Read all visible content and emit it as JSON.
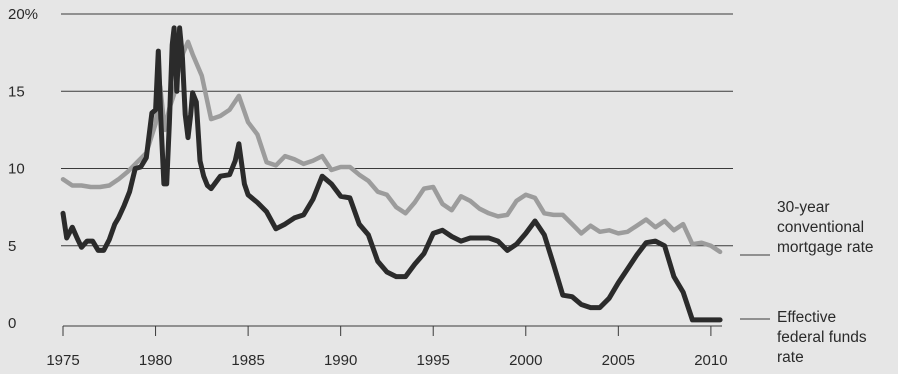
{
  "chart_data": {
    "type": "line",
    "title": "",
    "xlabel": "",
    "ylabel": "",
    "xlim": [
      1975,
      2010.6
    ],
    "ylim": [
      0,
      20
    ],
    "x_ticks": [
      "1975",
      "1980",
      "1985",
      "1990",
      "1995",
      "2000",
      "2005",
      "2010"
    ],
    "y_ticks": [
      "0",
      "5",
      "10",
      "15",
      "20%"
    ],
    "grid": "horizontal",
    "series": [
      {
        "name": "30-year conventional mortgage rate",
        "label_lines": [
          "30-year",
          "conventional",
          "mortgage rate"
        ],
        "color": "#9c9c9c",
        "x": [
          1975.0,
          1975.5,
          1976.0,
          1976.5,
          1977.0,
          1977.5,
          1978.0,
          1978.5,
          1979.0,
          1979.5,
          1980.0,
          1980.25,
          1980.5,
          1980.75,
          1981.0,
          1981.25,
          1981.5,
          1981.75,
          1982.0,
          1982.5,
          1983.0,
          1983.5,
          1984.0,
          1984.5,
          1985.0,
          1985.5,
          1986.0,
          1986.5,
          1987.0,
          1987.5,
          1988.0,
          1988.5,
          1989.0,
          1989.5,
          1990.0,
          1990.5,
          1991.0,
          1991.5,
          1992.0,
          1992.5,
          1993.0,
          1993.5,
          1994.0,
          1994.5,
          1995.0,
          1995.5,
          1996.0,
          1996.5,
          1997.0,
          1997.5,
          1998.0,
          1998.5,
          1999.0,
          1999.5,
          2000.0,
          2000.5,
          2001.0,
          2001.5,
          2002.0,
          2002.5,
          2003.0,
          2003.5,
          2004.0,
          2004.5,
          2005.0,
          2005.5,
          2006.0,
          2006.5,
          2007.0,
          2007.5,
          2008.0,
          2008.5,
          2009.0,
          2009.5,
          2010.0,
          2010.5
        ],
        "y": [
          9.3,
          8.9,
          8.9,
          8.8,
          8.8,
          8.9,
          9.3,
          9.8,
          10.4,
          11.0,
          12.9,
          15.3,
          12.5,
          13.9,
          14.8,
          16.5,
          17.5,
          18.2,
          17.4,
          16.0,
          13.2,
          13.4,
          13.8,
          14.7,
          13.0,
          12.2,
          10.4,
          10.2,
          10.8,
          10.6,
          10.3,
          10.5,
          10.8,
          9.9,
          10.1,
          10.1,
          9.6,
          9.2,
          8.5,
          8.3,
          7.5,
          7.1,
          7.8,
          8.7,
          8.8,
          7.7,
          7.3,
          8.2,
          7.9,
          7.4,
          7.1,
          6.9,
          7.0,
          7.9,
          8.3,
          8.1,
          7.1,
          7.0,
          7.0,
          6.4,
          5.8,
          6.3,
          5.9,
          6.0,
          5.8,
          5.9,
          6.3,
          6.7,
          6.2,
          6.6,
          6.0,
          6.4,
          5.1,
          5.2,
          5.0,
          4.6
        ]
      },
      {
        "name": "Effective federal funds rate",
        "label_lines": [
          "Effective",
          "federal funds",
          "rate"
        ],
        "color": "#2b2b2b",
        "x": [
          1975.0,
          1975.2,
          1975.5,
          1975.8,
          1976.0,
          1976.3,
          1976.6,
          1976.9,
          1977.2,
          1977.5,
          1977.8,
          1978.0,
          1978.3,
          1978.6,
          1978.9,
          1979.2,
          1979.5,
          1979.8,
          1980.0,
          1980.15,
          1980.3,
          1980.45,
          1980.6,
          1980.75,
          1980.9,
          1981.0,
          1981.15,
          1981.3,
          1981.45,
          1981.6,
          1981.75,
          1981.9,
          1982.0,
          1982.2,
          1982.4,
          1982.6,
          1982.8,
          1983.0,
          1983.5,
          1984.0,
          1984.3,
          1984.5,
          1984.8,
          1985.0,
          1985.5,
          1986.0,
          1986.5,
          1987.0,
          1987.5,
          1988.0,
          1988.5,
          1989.0,
          1989.5,
          1990.0,
          1990.5,
          1991.0,
          1991.5,
          1992.0,
          1992.5,
          1993.0,
          1993.5,
          1994.0,
          1994.5,
          1995.0,
          1995.5,
          1996.0,
          1996.5,
          1997.0,
          1997.5,
          1998.0,
          1998.5,
          1999.0,
          1999.5,
          2000.0,
          2000.5,
          2001.0,
          2001.5,
          2002.0,
          2002.5,
          2003.0,
          2003.5,
          2004.0,
          2004.5,
          2005.0,
          2005.5,
          2006.0,
          2006.5,
          2007.0,
          2007.5,
          2008.0,
          2008.5,
          2009.0,
          2009.5,
          2010.0,
          2010.5
        ],
        "y": [
          7.1,
          5.5,
          6.2,
          5.4,
          4.9,
          5.3,
          5.3,
          4.7,
          4.7,
          5.4,
          6.4,
          6.8,
          7.6,
          8.5,
          10.0,
          10.1,
          10.7,
          13.6,
          13.8,
          17.6,
          12.8,
          9.0,
          9.0,
          13.0,
          18.0,
          19.1,
          15.0,
          19.1,
          17.2,
          13.5,
          12.0,
          13.5,
          14.9,
          14.3,
          10.5,
          9.5,
          8.9,
          8.7,
          9.5,
          9.6,
          10.5,
          11.6,
          9.0,
          8.3,
          7.8,
          7.2,
          6.1,
          6.4,
          6.8,
          7.0,
          8.0,
          9.5,
          9.0,
          8.2,
          8.1,
          6.4,
          5.7,
          4.0,
          3.3,
          3.0,
          3.0,
          3.8,
          4.5,
          5.8,
          6.0,
          5.6,
          5.3,
          5.5,
          5.5,
          5.5,
          5.3,
          4.7,
          5.1,
          5.8,
          6.6,
          5.7,
          3.8,
          1.8,
          1.7,
          1.2,
          1.0,
          1.0,
          1.6,
          2.6,
          3.5,
          4.4,
          5.2,
          5.3,
          5.0,
          3.0,
          2.0,
          0.2,
          0.2,
          0.2,
          0.2
        ]
      }
    ]
  }
}
